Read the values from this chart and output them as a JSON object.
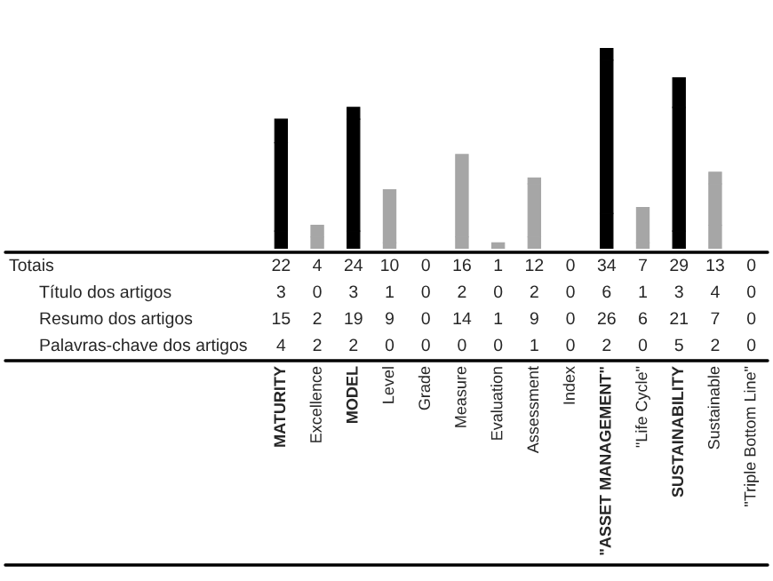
{
  "chart_data": {
    "type": "bar",
    "stacked": true,
    "data_labels": true,
    "categories": [
      "MATURITY",
      "Excellence",
      "MODEL",
      "Level",
      "Grade",
      "Measure",
      "Evaluation",
      "Assessment",
      "Index",
      "\"ASSET MANAGEMENT\"",
      "\"Life Cycle\"",
      "SUSTAINABILITY",
      "Sustainable",
      "\"Triple Bottom Line\""
    ],
    "annotations": [
      "Totais",
      "Título dos artigos",
      "Resumo dos artigos",
      "Palavras-chave dos artigos"
    ],
    "totals": [
      "22",
      "4",
      "24",
      "10",
      "0",
      "16",
      "1",
      "12",
      "0",
      "34",
      "7",
      "29",
      "13",
      "0"
    ],
    "series": [
      {
        "values": [
          3,
          0,
          3,
          1,
          0,
          2,
          0,
          2,
          0,
          6,
          1,
          3,
          4,
          0
        ],
        "colors": [
          "#000000",
          "#a6a6a6",
          "#000000",
          "#a6a6a6",
          "#a6a6a6",
          "#a6a6a6",
          "#a6a6a6",
          "#a6a6a6",
          "#a6a6a6",
          "#000000",
          "#a6a6a6",
          "#000000",
          "#a6a6a6",
          "#a6a6a6"
        ]
      },
      {
        "values": [
          15,
          2,
          19,
          9,
          0,
          14,
          1,
          9,
          0,
          26,
          6,
          21,
          7,
          0
        ],
        "colors": [
          "#000000",
          "#a6a6a6",
          "#000000",
          "#a6a6a6",
          "#a6a6a6",
          "#a6a6a6",
          "#a6a6a6",
          "#a6a6a6",
          "#a6a6a6",
          "#000000",
          "#a6a6a6",
          "#000000",
          "#a6a6a6",
          "#a6a6a6"
        ]
      },
      {
        "values": [
          4,
          2,
          2,
          0,
          0,
          0,
          0,
          1,
          0,
          2,
          0,
          5,
          2,
          0
        ],
        "colors": [
          "#000000",
          "#a6a6a6",
          "#000000",
          "#a6a6a6",
          "#a6a6a6",
          "#a6a6a6",
          "#a6a6a6",
          "#a6a6a6",
          "#a6a6a6",
          "#000000",
          "#a6a6a6",
          "#000000",
          "#a6a6a6",
          "#a6a6a6"
        ]
      }
    ]
  }
}
